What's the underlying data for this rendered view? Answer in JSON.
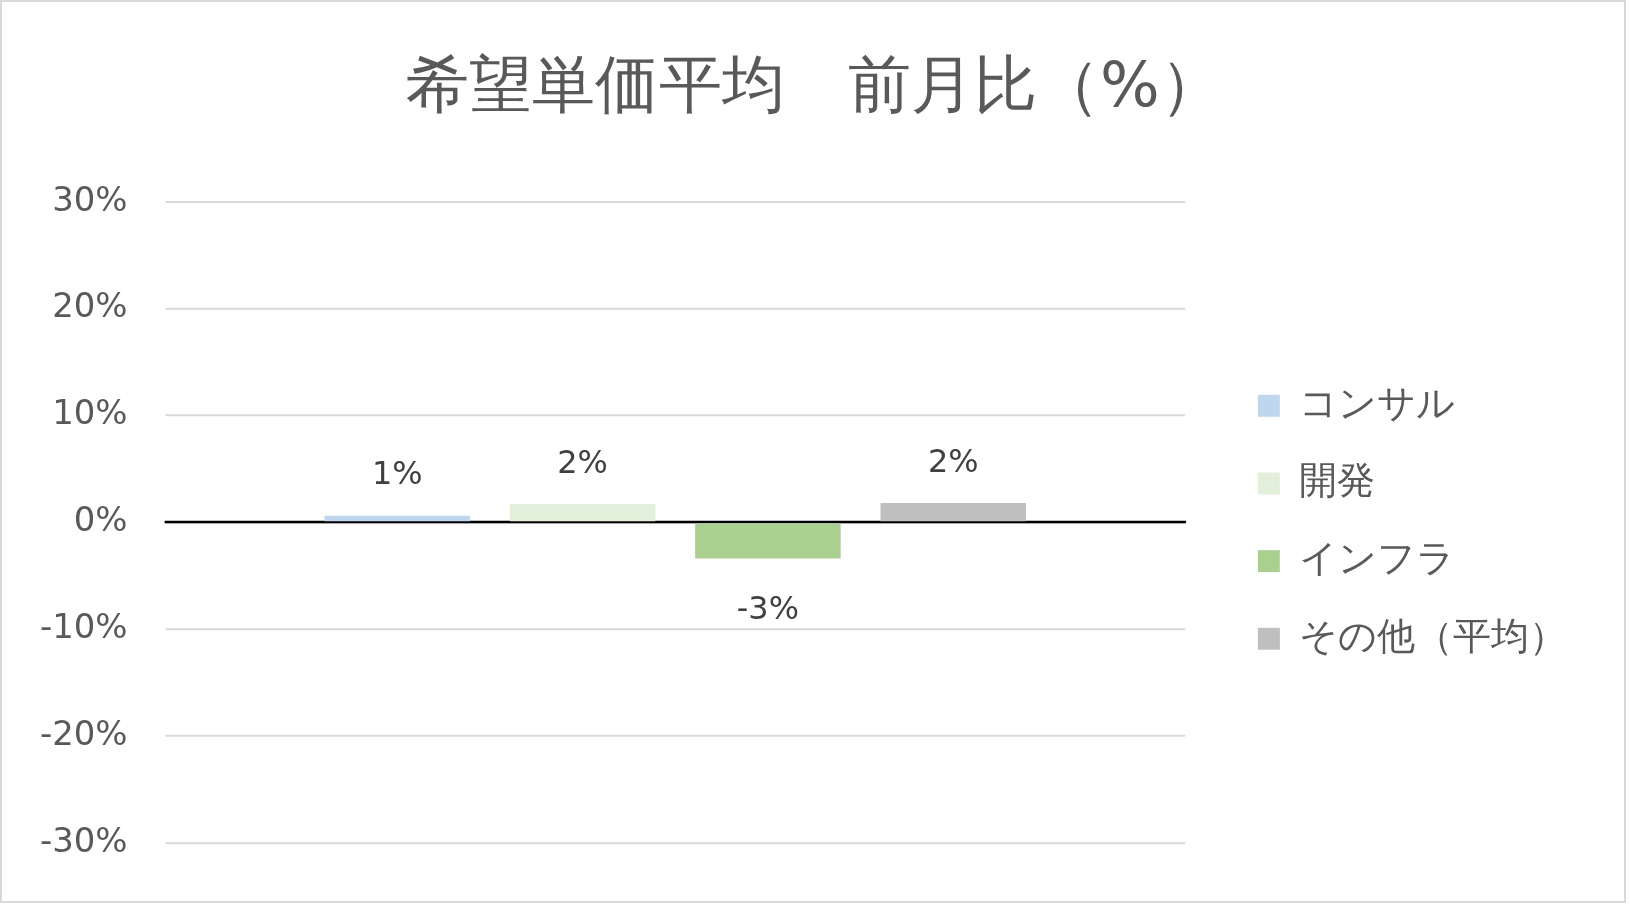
{
  "chart_data": {
    "type": "bar",
    "title": "希望単価平均　前月比（%）",
    "categories": [
      null
    ],
    "series": [
      {
        "name": "コンサル",
        "color": "#bdd7ee",
        "values": [
          0.6
        ],
        "value_labels": [
          "1%"
        ]
      },
      {
        "name": "開発",
        "color": "#e2efda",
        "values": [
          1.7
        ],
        "value_labels": [
          "2%"
        ]
      },
      {
        "name": "インフラ",
        "color": "#a9d08e",
        "values": [
          -3.4
        ],
        "value_labels": [
          "-3%"
        ]
      },
      {
        "name": "その他（平均）",
        "color": "#bfbfbf",
        "values": [
          1.8
        ],
        "value_labels": [
          "2%"
        ]
      }
    ],
    "ylim": [
      -30,
      30
    ],
    "yticks": [
      {
        "value": -30,
        "label": "-30%"
      },
      {
        "value": -20,
        "label": "-20%"
      },
      {
        "value": -10,
        "label": "-10%"
      },
      {
        "value": 0,
        "label": "0%"
      },
      {
        "value": 10,
        "label": "10%"
      },
      {
        "value": 20,
        "label": "20%"
      },
      {
        "value": 30,
        "label": "30%"
      }
    ],
    "grid": "y",
    "legend": "right",
    "tick_labels": "y"
  }
}
